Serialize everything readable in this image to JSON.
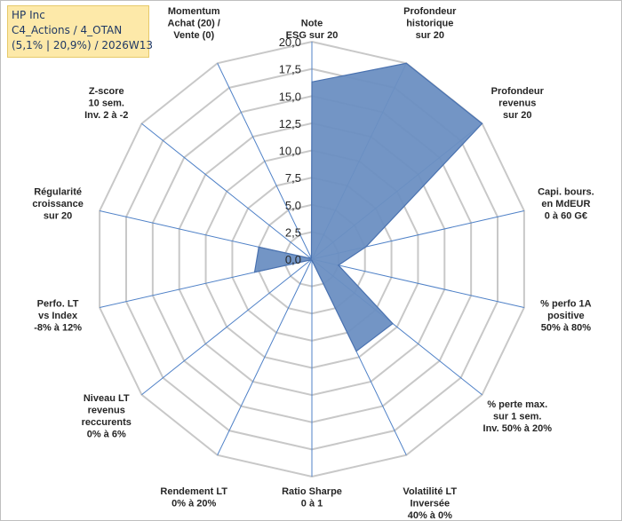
{
  "header": {
    "line1": "HP Inc",
    "line2": "C4_Actions / 4_OTAN",
    "line3": "(5,1% | 20,9%) / 2026W13"
  },
  "chart_data": {
    "type": "radar",
    "rmin": 0,
    "rmax": 20,
    "tick_labels": [
      "0,0",
      "2,5",
      "5,0",
      "7,5",
      "10,0",
      "12,5",
      "15,0",
      "17,5",
      "20,0"
    ],
    "axes": [
      {
        "label": [
          "Note",
          "ESG sur 20"
        ],
        "value": 16.3
      },
      {
        "label": [
          "Profondeur",
          "historique",
          "sur 20"
        ],
        "value": 20.0
      },
      {
        "label": [
          "Profondeur",
          "revenus",
          "sur 20"
        ],
        "value": 20.0
      },
      {
        "label": [
          "Capi. bours.",
          "en MdEUR",
          "0 à 60 G€"
        ],
        "value": 5.1
      },
      {
        "label": [
          "% perfo 1A",
          "positive",
          "50% à 80%"
        ],
        "value": 2.5
      },
      {
        "label": [
          "% perte max.",
          "sur 1 sem.",
          "Inv. 50% à 20%"
        ],
        "value": 9.5
      },
      {
        "label": [
          "Volatilité LT",
          "Inversée",
          "40% à 0%"
        ],
        "value": 9.4
      },
      {
        "label": [
          "Ratio Sharpe",
          "0 à 1"
        ],
        "value": 0.1
      },
      {
        "label": [
          "Rendement LT",
          "0% à 20%"
        ],
        "value": 0.1
      },
      {
        "label": [
          "Niveau LT",
          "revenus",
          "reccurents",
          "0% à 6%"
        ],
        "value": 0.1
      },
      {
        "label": [
          "Perfo. LT",
          "vs Index",
          "-8% à 12%"
        ],
        "value": 5.4
      },
      {
        "label": [
          "Régularité",
          "croissance",
          "sur 20"
        ],
        "value": 5.0
      },
      {
        "label": [
          "Z-score",
          "10 sem.",
          "Inv. 2 à -2"
        ],
        "value": 0.1
      },
      {
        "label": [
          "Momentum",
          "Achat (20) /",
          "Vente (0)"
        ],
        "value": 0.1
      }
    ],
    "colors": {
      "fill": "#6b8fc2",
      "stroke": "#4a72b0",
      "grid": "#c8c8c8",
      "spoke": "#4f81c7"
    }
  }
}
